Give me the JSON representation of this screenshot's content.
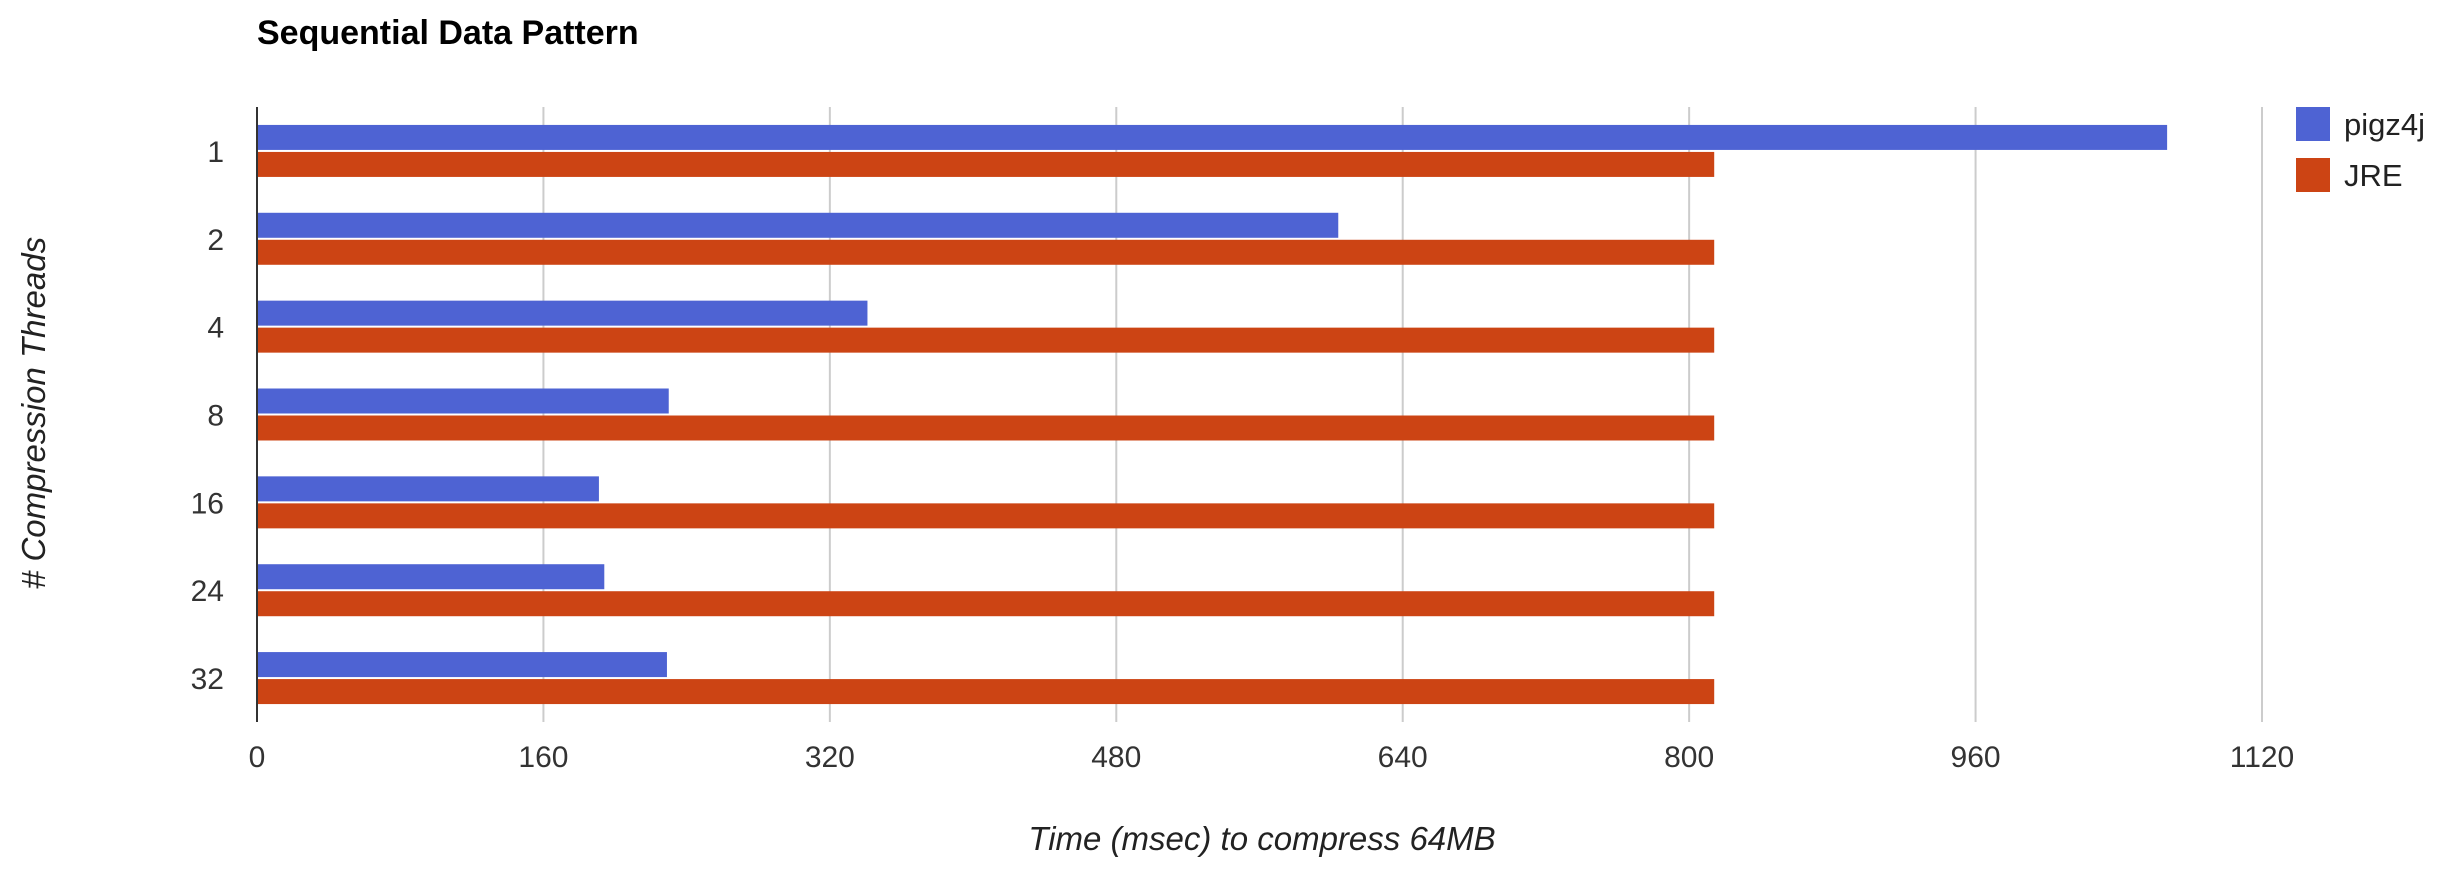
{
  "chart_data": {
    "type": "bar",
    "orientation": "horizontal",
    "title": "Sequential Data Pattern",
    "xlabel": "Time (msec) to compress 64MB",
    "ylabel": "# Compression Threads",
    "categories": [
      "1",
      "2",
      "4",
      "8",
      "16",
      "24",
      "32"
    ],
    "series": [
      {
        "name": "pigz4j",
        "color": "#4e63d3",
        "values": [
          1067,
          604,
          341,
          230,
          191,
          194,
          229
        ]
      },
      {
        "name": "JRE",
        "color": "#cc4414",
        "values": [
          814,
          814,
          814,
          814,
          814,
          814,
          814
        ]
      }
    ],
    "xlim": [
      0,
      1120
    ],
    "xticks": [
      "0",
      "160",
      "320",
      "480",
      "640",
      "800",
      "960",
      "1120"
    ],
    "grid": true,
    "legend_position": "top-right"
  }
}
